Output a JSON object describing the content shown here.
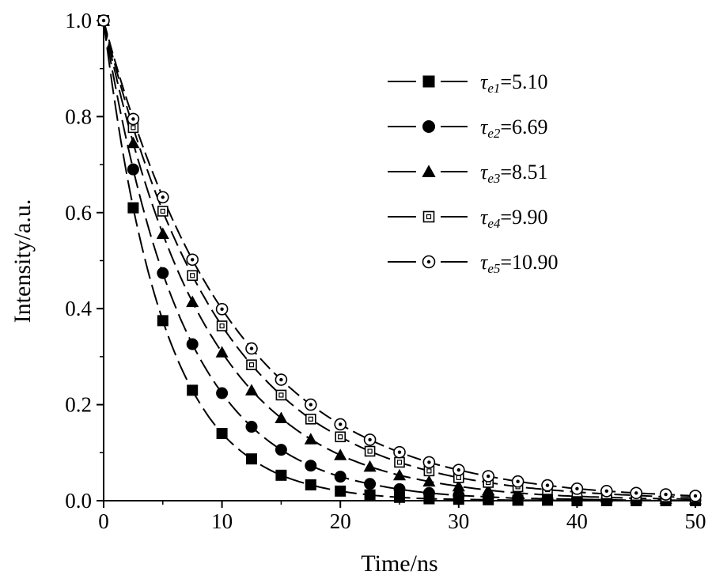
{
  "chart_data": {
    "type": "line",
    "xlabel": "Time/ns",
    "ylabel": "Intensity/a.u.",
    "xlim": [
      0,
      50
    ],
    "ylim": [
      0,
      1.0
    ],
    "x_ticks": [
      "0",
      "10",
      "20",
      "30",
      "40",
      "50"
    ],
    "y_ticks": [
      "0.0",
      "0.2",
      "0.4",
      "0.6",
      "0.8",
      "1.0"
    ],
    "x": [
      0,
      2.5,
      5,
      7.5,
      10,
      12.5,
      15,
      17.5,
      20,
      22.5,
      25,
      27.5,
      30,
      32.5,
      35,
      37.5,
      40,
      42.5,
      45,
      47.5,
      50
    ],
    "legend_position": "top-right",
    "grid": false,
    "series": [
      {
        "name": "τe1=5.10",
        "tau_symbol": "τ",
        "subscript": "e1",
        "value_text": "=5.10",
        "marker": "filled-square",
        "values": [
          1.0,
          0.61,
          0.375,
          0.23,
          0.14,
          0.087,
          0.053,
          0.033,
          0.02,
          0.012,
          0.007,
          0.004,
          0.003,
          0.002,
          0.001,
          0.001,
          0.0,
          0.0,
          0.0,
          0.0,
          0.0
        ]
      },
      {
        "name": "τe2=6.69",
        "tau_symbol": "τ",
        "subscript": "e2",
        "value_text": "=6.69",
        "marker": "filled-circle",
        "values": [
          1.0,
          0.69,
          0.474,
          0.326,
          0.224,
          0.154,
          0.106,
          0.073,
          0.05,
          0.035,
          0.024,
          0.016,
          0.011,
          0.008,
          0.005,
          0.004,
          0.003,
          0.002,
          0.001,
          0.001,
          0.001
        ]
      },
      {
        "name": "τe3=8.51",
        "tau_symbol": "τ",
        "subscript": "e3",
        "value_text": "=8.51",
        "marker": "filled-triangle",
        "values": [
          1.0,
          0.745,
          0.556,
          0.414,
          0.309,
          0.23,
          0.172,
          0.128,
          0.095,
          0.071,
          0.053,
          0.04,
          0.03,
          0.022,
          0.016,
          0.012,
          0.009,
          0.007,
          0.005,
          0.004,
          0.003
        ]
      },
      {
        "name": "τe4=9.90",
        "tau_symbol": "τ",
        "subscript": "e4",
        "value_text": "=9.90",
        "marker": "open-square",
        "values": [
          1.0,
          0.777,
          0.603,
          0.469,
          0.364,
          0.283,
          0.22,
          0.17,
          0.133,
          0.103,
          0.08,
          0.062,
          0.048,
          0.038,
          0.029,
          0.023,
          0.018,
          0.014,
          0.011,
          0.008,
          0.007
        ]
      },
      {
        "name": "τe5=10.90",
        "tau_symbol": "τ",
        "subscript": "e5",
        "value_text": "=10.90",
        "marker": "open-circle-dot",
        "values": [
          1.0,
          0.795,
          0.632,
          0.502,
          0.399,
          0.317,
          0.252,
          0.2,
          0.159,
          0.127,
          0.101,
          0.08,
          0.064,
          0.051,
          0.04,
          0.032,
          0.025,
          0.02,
          0.016,
          0.013,
          0.01
        ]
      }
    ]
  }
}
